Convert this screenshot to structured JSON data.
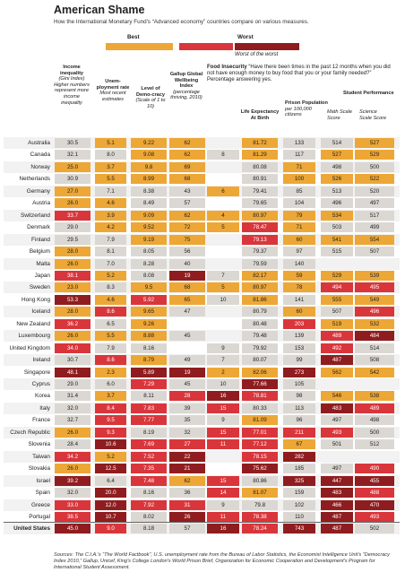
{
  "title": "American Shame",
  "subtitle": "How the International Monetary Fund's “Advanced economy” countries compare on various measures.",
  "legend": {
    "best": "Best",
    "worst": "Worst",
    "worst_of_worst": "Worst of the worst"
  },
  "colors": {
    "best": "#eda736",
    "mid": "#dbd8d3",
    "bad": "#d9363c",
    "worst": "#8f1d1f",
    "row_shade": "#f2f2f2"
  },
  "headers": {
    "gini": {
      "title": "Income inequality",
      "paren": "(Gini Index)",
      "note": "Higher numbers represent more income inequality"
    },
    "unemp": {
      "title": "Unem-ployment rate",
      "note": "Most recent estimates"
    },
    "democracy": {
      "title": "Level of Demo-cracy",
      "note": "(Scale of 1 to 10)"
    },
    "gallup": {
      "title": "Gallup Global Wellbeing Index",
      "note": "(percentage thriving, 2010)"
    },
    "food_title": "Food Insecurity",
    "food_question": "“Have there been times in the past 12 months when you did not have enough money to buy food that you or your family needed?” Percentage answering yes.",
    "life": {
      "title": "Life Expectancy At Birth"
    },
    "prison": {
      "title": "Prison Population",
      "note": "per 100,000 citizens"
    },
    "student": {
      "title": "Student Performance"
    },
    "math": {
      "note": "Math Scale Score"
    },
    "science": {
      "note": "Science Scale Score"
    }
  },
  "chart_data": {
    "type": "table",
    "columns": [
      "Income inequality",
      "Unemployment rate",
      "Level of Democracy",
      "Gallup Global Wellbeing Index",
      "Food Insecurity",
      "Life Expectancy At Birth",
      "Prison Population",
      "Math Scale Score",
      "Science Scale Score"
    ],
    "rows": [
      {
        "country": "Australia",
        "values": [
          "30.5",
          "5.1",
          "9.22",
          "62",
          "",
          "81.72",
          "133",
          "514",
          "527"
        ],
        "levels": [
          "m",
          "b",
          "b",
          "b",
          "n",
          "b",
          "m",
          "m",
          "b"
        ]
      },
      {
        "country": "Canada",
        "values": [
          "32.1",
          "8.0",
          "9.08",
          "62",
          "8",
          "81.29",
          "117",
          "527",
          "529"
        ],
        "levels": [
          "m",
          "m",
          "b",
          "b",
          "m",
          "b",
          "m",
          "b",
          "b"
        ]
      },
      {
        "country": "Norway",
        "values": [
          "25.0",
          "3.7",
          "9.8",
          "69",
          "",
          "80.08",
          "71",
          "498",
          "500"
        ],
        "levels": [
          "b",
          "b",
          "b",
          "b",
          "n",
          "m",
          "b",
          "m",
          "m"
        ]
      },
      {
        "country": "Netherlands",
        "values": [
          "30.9",
          "5.5",
          "8.99",
          "68",
          "",
          "80.91",
          "100",
          "526",
          "522"
        ],
        "levels": [
          "m",
          "b",
          "b",
          "b",
          "n",
          "m",
          "b",
          "b",
          "b"
        ]
      },
      {
        "country": "Germany",
        "values": [
          "27.0",
          "7.1",
          "8.38",
          "43",
          "6",
          "79.41",
          "85",
          "513",
          "520"
        ],
        "levels": [
          "b",
          "m",
          "m",
          "m",
          "b",
          "m",
          "m",
          "m",
          "m"
        ]
      },
      {
        "country": "Austria",
        "values": [
          "26.0",
          "4.6",
          "8.49",
          "57",
          "",
          "79.65",
          "104",
          "496",
          "497"
        ],
        "levels": [
          "b",
          "b",
          "m",
          "m",
          "n",
          "m",
          "m",
          "m",
          "m"
        ]
      },
      {
        "country": "Switzerland",
        "values": [
          "33.7",
          "3.9",
          "9.09",
          "62",
          "4",
          "80.97",
          "79",
          "534",
          "517"
        ],
        "levels": [
          "r",
          "b",
          "b",
          "b",
          "b",
          "b",
          "b",
          "b",
          "m"
        ]
      },
      {
        "country": "Denmark",
        "values": [
          "29.0",
          "4.2",
          "9.52",
          "72",
          "5",
          "78.47",
          "71",
          "503",
          "499"
        ],
        "levels": [
          "m",
          "b",
          "b",
          "b",
          "b",
          "r",
          "b",
          "m",
          "m"
        ]
      },
      {
        "country": "Finland",
        "values": [
          "29.5",
          "7.9",
          "9.19",
          "75",
          "",
          "79.13",
          "60",
          "541",
          "554"
        ],
        "levels": [
          "m",
          "m",
          "b",
          "b",
          "n",
          "r",
          "b",
          "b",
          "b"
        ]
      },
      {
        "country": "Belgium",
        "values": [
          "28.0",
          "8.1",
          "8.05",
          "56",
          "",
          "79.37",
          "97",
          "515",
          "507"
        ],
        "levels": [
          "b",
          "m",
          "m",
          "m",
          "n",
          "m",
          "m",
          "m",
          "m"
        ]
      },
      {
        "country": "Malta",
        "values": [
          "26.0",
          "7.0",
          "8.28",
          "40",
          "",
          "79.59",
          "140",
          "",
          ""
        ],
        "levels": [
          "b",
          "m",
          "m",
          "m",
          "n",
          "m",
          "m",
          "n",
          "n"
        ]
      },
      {
        "country": "Japan",
        "values": [
          "38.1",
          "5.2",
          "8.08",
          "19",
          "7",
          "82.17",
          "59",
          "529",
          "539"
        ],
        "levels": [
          "r",
          "b",
          "m",
          "w",
          "m",
          "b",
          "b",
          "b",
          "b"
        ]
      },
      {
        "country": "Sweden",
        "values": [
          "23.0",
          "8.3",
          "9.5",
          "68",
          "5",
          "80.97",
          "78",
          "494",
          "495"
        ],
        "levels": [
          "b",
          "m",
          "b",
          "b",
          "b",
          "b",
          "b",
          "r",
          "r"
        ]
      },
      {
        "country": "Hong Kong",
        "values": [
          "53.3",
          "4.6",
          "5.92",
          "65",
          "10",
          "81.86",
          "141",
          "555",
          "549"
        ],
        "levels": [
          "w",
          "b",
          "r",
          "b",
          "m",
          "b",
          "m",
          "b",
          "b"
        ]
      },
      {
        "country": "Iceland",
        "values": [
          "28.0",
          "8.6",
          "9.65",
          "47",
          "",
          "80.79",
          "60",
          "507",
          "496"
        ],
        "levels": [
          "b",
          "r",
          "b",
          "m",
          "n",
          "m",
          "b",
          "m",
          "r"
        ]
      },
      {
        "country": "New Zealand",
        "values": [
          "36.2",
          "6.5",
          "9.26",
          "",
          "",
          "80.48",
          "203",
          "519",
          "532"
        ],
        "levels": [
          "r",
          "m",
          "b",
          "n",
          "n",
          "m",
          "r",
          "b",
          "b"
        ]
      },
      {
        "country": "Luxembourg",
        "values": [
          "26.0",
          "5.5",
          "8.88",
          "45",
          "",
          "79.48",
          "139",
          "489",
          "484"
        ],
        "levels": [
          "b",
          "b",
          "b",
          "m",
          "n",
          "m",
          "m",
          "r",
          "w"
        ]
      },
      {
        "country": "United Kingdom",
        "values": [
          "34.0",
          "7.9",
          "8.16",
          "",
          "9",
          "79.92",
          "153",
          "492",
          "514"
        ],
        "levels": [
          "r",
          "m",
          "m",
          "n",
          "m",
          "m",
          "m",
          "r",
          "m"
        ]
      },
      {
        "country": "Ireland",
        "values": [
          "30.7",
          "8.6",
          "8.79",
          "49",
          "7",
          "80.07",
          "99",
          "487",
          "508"
        ],
        "levels": [
          "m",
          "r",
          "b",
          "m",
          "m",
          "m",
          "m",
          "w",
          "m"
        ]
      },
      {
        "country": "Singapore",
        "values": [
          "48.1",
          "2.3",
          "5.89",
          "19",
          "2",
          "82.06",
          "273",
          "562",
          "542"
        ],
        "levels": [
          "w",
          "b",
          "w",
          "w",
          "b",
          "b",
          "w",
          "b",
          "b"
        ]
      },
      {
        "country": "Cyprus",
        "values": [
          "29.0",
          "6.0",
          "7.29",
          "45",
          "10",
          "77.66",
          "105",
          "",
          ""
        ],
        "levels": [
          "m",
          "m",
          "r",
          "m",
          "m",
          "w",
          "m",
          "n",
          "n"
        ]
      },
      {
        "country": "Korea",
        "values": [
          "31.4",
          "3.7",
          "8.11",
          "28",
          "16",
          "78.81",
          "98",
          "546",
          "538"
        ],
        "levels": [
          "m",
          "b",
          "m",
          "r",
          "w",
          "r",
          "m",
          "b",
          "b"
        ]
      },
      {
        "country": "Italy",
        "values": [
          "32.0",
          "8.4",
          "7.83",
          "39",
          "15",
          "80.33",
          "113",
          "483",
          "489"
        ],
        "levels": [
          "m",
          "r",
          "r",
          "m",
          "r",
          "m",
          "m",
          "w",
          "r"
        ]
      },
      {
        "country": "France",
        "values": [
          "32.7",
          "9.5",
          "7.77",
          "35",
          "9",
          "81.09",
          "96",
          "497",
          "498"
        ],
        "levels": [
          "m",
          "r",
          "r",
          "m",
          "m",
          "b",
          "m",
          "m",
          "m"
        ]
      },
      {
        "country": "Czech Republic",
        "values": [
          "26.0",
          "9.3",
          "8.19",
          "32",
          "15",
          "77.01",
          "211",
          "493",
          "500"
        ],
        "levels": [
          "b",
          "r",
          "m",
          "m",
          "r",
          "r",
          "r",
          "r",
          "m"
        ]
      },
      {
        "country": "Slovenia",
        "values": [
          "28.4",
          "10.6",
          "7.69",
          "27",
          "11",
          "77.12",
          "67",
          "501",
          "512"
        ],
        "levels": [
          "m",
          "w",
          "r",
          "r",
          "r",
          "r",
          "b",
          "m",
          "m"
        ]
      },
      {
        "country": "Taiwan",
        "values": [
          "34.2",
          "5.2",
          "7.52",
          "22",
          "",
          "78.15",
          "282",
          "",
          ""
        ],
        "levels": [
          "r",
          "b",
          "r",
          "w",
          "n",
          "r",
          "w",
          "n",
          "n"
        ]
      },
      {
        "country": "Slovakia",
        "values": [
          "26.0",
          "12.5",
          "7.35",
          "21",
          "",
          "75.62",
          "185",
          "497",
          "490"
        ],
        "levels": [
          "b",
          "w",
          "r",
          "w",
          "n",
          "w",
          "m",
          "m",
          "r"
        ]
      },
      {
        "country": "Israel",
        "values": [
          "39.2",
          "6.4",
          "7.48",
          "62",
          "15",
          "80.86",
          "325",
          "447",
          "455"
        ],
        "levels": [
          "w",
          "m",
          "r",
          "b",
          "r",
          "m",
          "w",
          "w",
          "w"
        ]
      },
      {
        "country": "Spain",
        "values": [
          "32.0",
          "20.0",
          "8.16",
          "36",
          "14",
          "81.07",
          "159",
          "483",
          "488"
        ],
        "levels": [
          "m",
          "w",
          "m",
          "m",
          "r",
          "b",
          "m",
          "w",
          "r"
        ]
      },
      {
        "country": "Greece",
        "values": [
          "33.0",
          "12.0",
          "7.92",
          "31",
          "9",
          "79.8",
          "102",
          "466",
          "470"
        ],
        "levels": [
          "r",
          "w",
          "r",
          "r",
          "m",
          "m",
          "m",
          "w",
          "w"
        ]
      },
      {
        "country": "Portugal",
        "values": [
          "38.5",
          "10.7",
          "8.02",
          "26",
          "11",
          "78.38",
          "110",
          "487",
          "493"
        ],
        "levels": [
          "r",
          "w",
          "m",
          "w",
          "r",
          "r",
          "m",
          "w",
          "r"
        ]
      },
      {
        "country": "United States",
        "values": [
          "45.0",
          "9.0",
          "8.18",
          "57",
          "16",
          "78.24",
          "743",
          "487",
          "502"
        ],
        "levels": [
          "w",
          "r",
          "m",
          "m",
          "w",
          "r",
          "w",
          "w",
          "m"
        ]
      }
    ]
  },
  "sources_label": "Sources:",
  "sources_text": "The C.I.A.'s “The World Factbook”, U.S. unemployment rate from the Bureau of Labor Statistics, the Economist Intelligence Unit's “Democracy Index 2010,” Gallup, Unicef, King's College London's World Prison Brief, Organization for Economic Cooperation and Development's Program for International Student Assessment."
}
